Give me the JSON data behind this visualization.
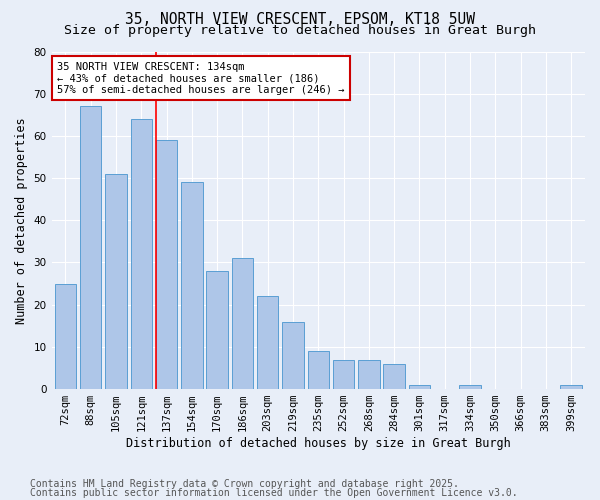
{
  "title": "35, NORTH VIEW CRESCENT, EPSOM, KT18 5UW",
  "subtitle": "Size of property relative to detached houses in Great Burgh",
  "xlabel": "Distribution of detached houses by size in Great Burgh",
  "ylabel": "Number of detached properties",
  "categories": [
    "72sqm",
    "88sqm",
    "105sqm",
    "121sqm",
    "137sqm",
    "154sqm",
    "170sqm",
    "186sqm",
    "203sqm",
    "219sqm",
    "235sqm",
    "252sqm",
    "268sqm",
    "284sqm",
    "301sqm",
    "317sqm",
    "334sqm",
    "350sqm",
    "366sqm",
    "383sqm",
    "399sqm"
  ],
  "values": [
    25,
    67,
    51,
    64,
    59,
    49,
    28,
    31,
    22,
    16,
    9,
    7,
    7,
    6,
    1,
    0,
    1,
    0,
    0,
    0,
    1
  ],
  "bar_color": "#aec6e8",
  "bar_edge_color": "#5a9fd4",
  "red_line_index": 4,
  "annotation_line1": "35 NORTH VIEW CRESCENT: 134sqm",
  "annotation_line2": "← 43% of detached houses are smaller (186)",
  "annotation_line3": "57% of semi-detached houses are larger (246) →",
  "annotation_box_color": "#ffffff",
  "annotation_box_edge": "#cc0000",
  "ylim": [
    0,
    80
  ],
  "yticks": [
    0,
    10,
    20,
    30,
    40,
    50,
    60,
    70,
    80
  ],
  "footer1": "Contains HM Land Registry data © Crown copyright and database right 2025.",
  "footer2": "Contains public sector information licensed under the Open Government Licence v3.0.",
  "bg_color": "#e8eef8",
  "plot_bg_color": "#e8eef8",
  "title_fontsize": 10.5,
  "subtitle_fontsize": 9.5,
  "axis_label_fontsize": 8.5,
  "tick_fontsize": 7.5,
  "annotation_fontsize": 7.5,
  "footer_fontsize": 7
}
